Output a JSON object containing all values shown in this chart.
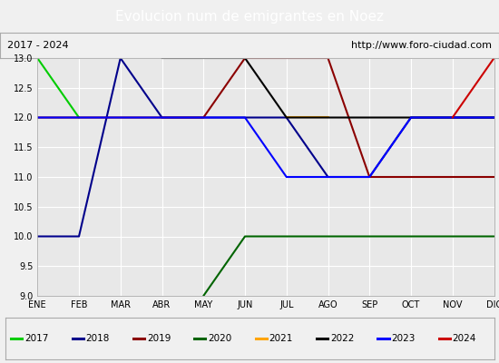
{
  "title": "Evolucion num de emigrantes en Noez",
  "subtitle_left": "2017 - 2024",
  "subtitle_right": "http://www.foro-ciudad.com",
  "months": [
    "ENE",
    "FEB",
    "MAR",
    "ABR",
    "MAY",
    "JUN",
    "JUL",
    "AGO",
    "SEP",
    "OCT",
    "NOV",
    "DIC"
  ],
  "month_indices": [
    1,
    2,
    3,
    4,
    5,
    6,
    7,
    8,
    9,
    10,
    11,
    12
  ],
  "ylim": [
    9.0,
    13.0
  ],
  "yticks": [
    9.0,
    9.5,
    10.0,
    10.5,
    11.0,
    11.5,
    12.0,
    12.5,
    13.0
  ],
  "series": {
    "2017": {
      "color": "#00cc00",
      "x": [
        1,
        2
      ],
      "y": [
        13,
        12
      ]
    },
    "2018": {
      "color": "#00008b",
      "x": [
        1,
        2,
        3,
        4,
        5,
        6,
        7,
        8,
        9,
        10,
        11,
        12
      ],
      "y": [
        10,
        10,
        13,
        12,
        12,
        12,
        12,
        11,
        11,
        12,
        12,
        12
      ]
    },
    "2019": {
      "color": "#8b0000",
      "x": [
        1,
        2,
        3,
        4,
        5,
        6,
        7,
        8,
        9,
        10,
        11,
        12
      ],
      "y": [
        12,
        12,
        12,
        12,
        12,
        13,
        13,
        13,
        11,
        11,
        11,
        11
      ]
    },
    "2020": {
      "color": "#006400",
      "x": [
        5,
        6,
        7,
        8,
        9,
        10,
        11,
        12
      ],
      "y": [
        9,
        10,
        10,
        10,
        10,
        10,
        10,
        10
      ]
    },
    "2021": {
      "color": "#ffa500",
      "x": [
        7,
        8
      ],
      "y": [
        12,
        12
      ]
    },
    "2022": {
      "color": "#000000",
      "x": [
        4,
        5,
        6,
        7,
        8,
        9,
        10,
        11,
        12
      ],
      "y": [
        13,
        13,
        13,
        12,
        12,
        12,
        12,
        12,
        12
      ]
    },
    "2023": {
      "color": "#0000ff",
      "x": [
        1,
        2,
        3,
        4,
        5,
        6,
        7,
        8,
        9,
        10,
        11,
        12
      ],
      "y": [
        12,
        12,
        12,
        12,
        12,
        12,
        11,
        11,
        11,
        12,
        12,
        12
      ]
    },
    "2024": {
      "color": "#cc0000",
      "x": [
        11,
        12
      ],
      "y": [
        12,
        13
      ]
    }
  },
  "title_bg_color": "#4472c4",
  "title_font_color": "#ffffff",
  "plot_bg_color": "#e8e8e8",
  "grid_color": "#ffffff",
  "box_bg_color": "#f0f0f0",
  "legend_bg_color": "#f0f0f0",
  "title_fontsize": 11,
  "subtitle_fontsize": 8,
  "tick_fontsize": 7,
  "legend_fontsize": 7.5,
  "linewidth": 1.5
}
